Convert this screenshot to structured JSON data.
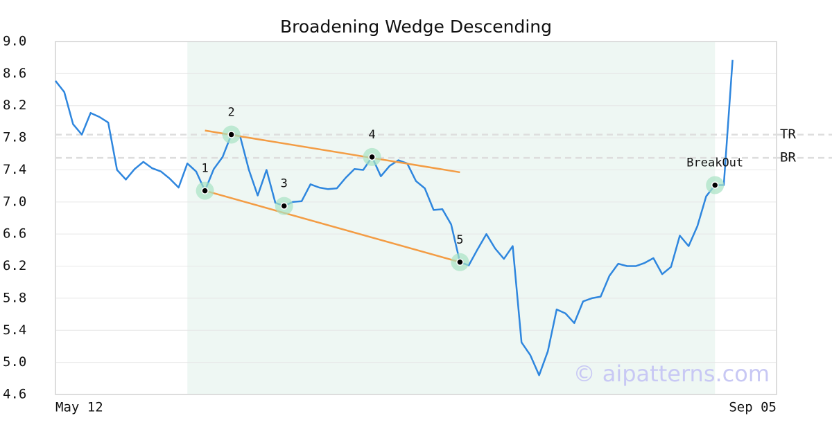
{
  "chart_data": {
    "type": "line",
    "title": "Broadening Wedge Descending",
    "categories": [
      "May 12",
      null,
      null,
      null,
      null,
      null,
      null,
      null,
      null,
      null,
      null,
      null,
      null,
      null,
      null,
      null,
      null,
      null,
      null,
      null,
      null,
      null,
      null,
      null,
      null,
      null,
      null,
      null,
      null,
      null,
      null,
      null,
      null,
      null,
      null,
      null,
      null,
      null,
      null,
      null,
      null,
      null,
      null,
      null,
      null,
      null,
      null,
      null,
      null,
      null,
      null,
      null,
      null,
      null,
      null,
      null,
      null,
      null,
      null,
      null,
      null,
      null,
      null,
      null,
      null,
      null,
      null,
      null,
      null,
      null,
      null,
      null,
      null,
      null,
      null,
      null,
      null,
      null,
      null,
      null,
      null,
      null,
      "Sep 05"
    ],
    "values": [
      8.51,
      8.37,
      7.97,
      7.84,
      8.11,
      8.06,
      7.99,
      7.4,
      7.28,
      7.41,
      7.5,
      7.42,
      7.38,
      7.29,
      7.18,
      7.48,
      7.38,
      7.14,
      7.41,
      7.56,
      7.84,
      7.82,
      7.4,
      7.08,
      7.4,
      6.99,
      6.95,
      7.0,
      7.01,
      7.22,
      7.18,
      7.16,
      7.17,
      7.3,
      7.41,
      7.4,
      7.56,
      7.32,
      7.45,
      7.52,
      7.48,
      7.26,
      7.17,
      6.9,
      6.91,
      6.72,
      6.25,
      6.21,
      6.41,
      6.6,
      6.42,
      6.29,
      6.45,
      5.25,
      5.09,
      4.84,
      5.14,
      5.66,
      5.61,
      5.49,
      5.76,
      5.8,
      5.82,
      6.08,
      6.23,
      6.2,
      6.2,
      6.24,
      6.3,
      6.1,
      6.19,
      6.58,
      6.45,
      6.7,
      7.07,
      7.21,
      7.21,
      8.77,
      null,
      null,
      null,
      null,
      null
    ],
    "color": "#2e86de",
    "ylim": [
      4.6,
      9.0
    ],
    "yticks": [
      4.6,
      {
        "value": 5.0,
        "label": "5.0"
      },
      5.4,
      5.8,
      6.2,
      6.6,
      {
        "value": 7.0,
        "label": "7.0"
      },
      7.4,
      7.8,
      8.2,
      8.6,
      {
        "value": 9.0,
        "label": "9.0"
      }
    ],
    "grid": true,
    "shade_x": [
      15,
      75
    ],
    "points": [
      {
        "label": "1",
        "x": 17,
        "value": 7.14
      },
      {
        "label": "2",
        "x": 20,
        "value": 7.84
      },
      {
        "label": "3",
        "x": 26,
        "value": 6.95
      },
      {
        "label": "4",
        "x": 36,
        "value": 7.56
      },
      {
        "label": "5",
        "x": 46,
        "value": 6.25
      },
      {
        "label": "BreakOut",
        "x": 75,
        "value": 7.21
      }
    ],
    "trendlines": [
      {
        "x": [
          17,
          46
        ],
        "values": [
          7.89,
          7.37
        ],
        "color": "#f39c44"
      },
      {
        "x": [
          17,
          46
        ],
        "values": [
          7.14,
          6.25
        ],
        "color": "#f39c44"
      }
    ],
    "levels": [
      {
        "label": "TR",
        "value": 7.84
      },
      {
        "label": "BR",
        "value": 7.55
      }
    ],
    "watermark": "© aipatterns.com"
  }
}
